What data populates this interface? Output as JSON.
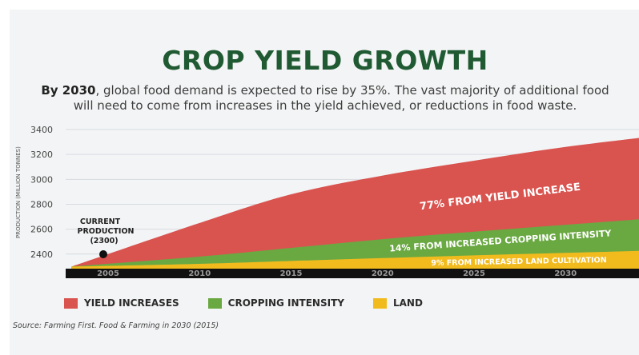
{
  "header": {
    "title": "CROP YIELD GROWTH",
    "subtitle_bold": "By 2030",
    "subtitle_rest": ", global food demand is expected to rise by 35%. The vast majority of additional food",
    "subtitle_line2": "will need to come from increases in the yield achieved, or reductions in food waste."
  },
  "annotation": {
    "line1": "CURRENT",
    "line2": "PRODUCTION",
    "line3": "(2300)"
  },
  "legend": {
    "items": [
      {
        "label": "YIELD INCREASES",
        "color": "#d9534f"
      },
      {
        "label": "CROPPING INTENSITY",
        "color": "#6aa842"
      },
      {
        "label": "LAND",
        "color": "#f2bb1d"
      }
    ]
  },
  "source": "Source: Farming First. Food & Farming in 2030 (2015)",
  "chart_data": {
    "type": "area",
    "title": "CROP YIELD GROWTH",
    "ylabel": "PRODUCTION (MILLION TONNES)",
    "xlabel": "",
    "ylim": [
      2300,
      3400
    ],
    "y_ticks": [
      2400,
      2600,
      2800,
      3000,
      3200,
      3400
    ],
    "x_ticks": [
      2005,
      2010,
      2015,
      2020,
      2025,
      2030
    ],
    "xlim": [
      2005,
      2033
    ],
    "baseline": 2300,
    "current_production": {
      "x": 2007,
      "y": 2300
    },
    "series": [
      {
        "name": "LAND",
        "color": "#f2bb1d",
        "label": "9% FROM INCREASED LAND CULTIVATION",
        "x": [
          2003,
          2010,
          2015,
          2020,
          2025,
          2030,
          2035
        ],
        "values": [
          2300,
          2322,
          2345,
          2368,
          2390,
          2410,
          2430
        ]
      },
      {
        "name": "CROPPING INTENSITY",
        "color": "#6aa842",
        "label": "14% FROM INCREASED CROPPING INTENSITY",
        "x": [
          2003,
          2010,
          2015,
          2020,
          2025,
          2030,
          2035
        ],
        "values": [
          2300,
          2380,
          2450,
          2520,
          2580,
          2635,
          2690
        ]
      },
      {
        "name": "YIELD INCREASES",
        "color": "#d9534f",
        "label": "77% FROM YIELD INCREASE",
        "x": [
          2003,
          2010,
          2015,
          2020,
          2025,
          2030,
          2035
        ],
        "values": [
          2300,
          2650,
          2880,
          3030,
          3150,
          3260,
          3350
        ]
      }
    ]
  }
}
